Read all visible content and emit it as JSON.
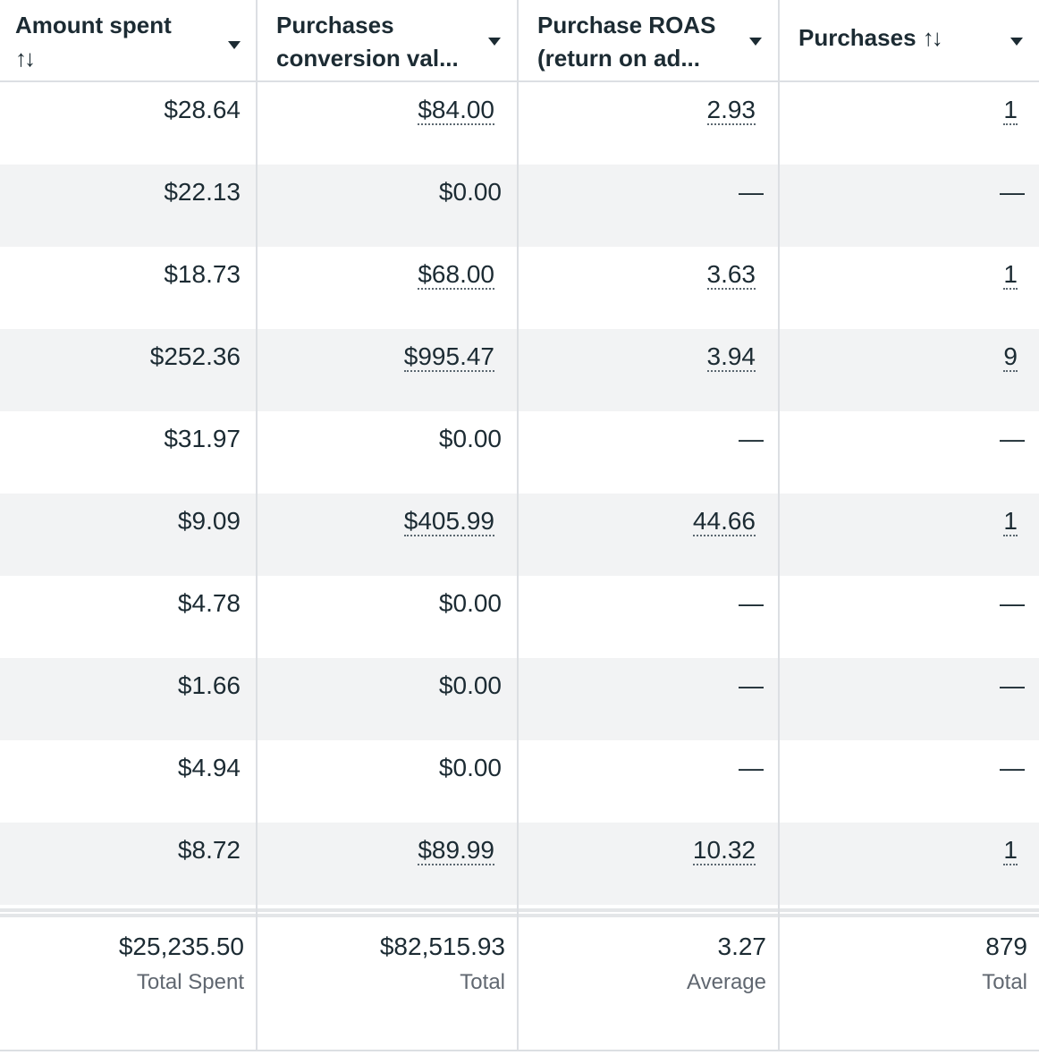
{
  "columns": [
    {
      "label_line1": "Amount spent",
      "label_line2": "",
      "sort_icon": "↑↓"
    },
    {
      "label_line1": "Purchases",
      "label_line2": "conversion val...",
      "sort_icon": ""
    },
    {
      "label_line1": "Purchase ROAS",
      "label_line2": "(return on ad...",
      "sort_icon": ""
    },
    {
      "label_line1": "Purchases",
      "label_line2": "",
      "sort_icon": "↑↓"
    }
  ],
  "rows": [
    {
      "amount_spent": "$28.64",
      "conversion_value": "$84.00",
      "roas": "2.93",
      "purchases": "1"
    },
    {
      "amount_spent": "$22.13",
      "conversion_value": "$0.00",
      "roas": "—",
      "purchases": "—"
    },
    {
      "amount_spent": "$18.73",
      "conversion_value": "$68.00",
      "roas": "3.63",
      "purchases": "1"
    },
    {
      "amount_spent": "$252.36",
      "conversion_value": "$995.47",
      "roas": "3.94",
      "purchases": "9"
    },
    {
      "amount_spent": "$31.97",
      "conversion_value": "$0.00",
      "roas": "—",
      "purchases": "—"
    },
    {
      "amount_spent": "$9.09",
      "conversion_value": "$405.99",
      "roas": "44.66",
      "purchases": "1"
    },
    {
      "amount_spent": "$4.78",
      "conversion_value": "$0.00",
      "roas": "—",
      "purchases": "—"
    },
    {
      "amount_spent": "$1.66",
      "conversion_value": "$0.00",
      "roas": "—",
      "purchases": "—"
    },
    {
      "amount_spent": "$4.94",
      "conversion_value": "$0.00",
      "roas": "—",
      "purchases": "—"
    },
    {
      "amount_spent": "$8.72",
      "conversion_value": "$89.99",
      "roas": "10.32",
      "purchases": "1"
    }
  ],
  "footer": {
    "amount_spent": {
      "value": "$25,235.50",
      "label": "Total Spent"
    },
    "conversion_value": {
      "value": "$82,515.93",
      "label": "Total"
    },
    "roas": {
      "value": "3.27",
      "label": "Average"
    },
    "purchases": {
      "value": "879",
      "label": "Total"
    }
  },
  "colors": {
    "text": "#1c2b33",
    "muted": "#606770",
    "row_alt": "#f2f3f4",
    "divider": "#dcdfe3"
  }
}
